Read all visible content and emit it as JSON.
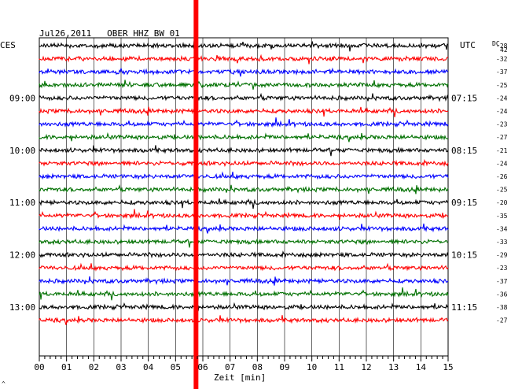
{
  "chart_data": {
    "type": "line",
    "title": "Jul26,2011   OBER HHZ BW 01",
    "left_timezone": "CES",
    "right_timezone": "UTC",
    "dc_label": "DC",
    "dc_superscript": "42",
    "xlabel": "Zeit [min]",
    "x_ticks": [
      "00",
      "01",
      "02",
      "03",
      "04",
      "05",
      "06",
      "07",
      "08",
      "09",
      "10",
      "11",
      "12",
      "13",
      "14",
      "15"
    ],
    "xlim": [
      0,
      15
    ],
    "grid": true,
    "trace_colors": [
      "#000000",
      "#ff0000",
      "#0000ff",
      "#007000"
    ],
    "left_hour_labels": [
      {
        "trace": 4,
        "label": "09:00"
      },
      {
        "trace": 8,
        "label": "10:00"
      },
      {
        "trace": 12,
        "label": "11:00"
      },
      {
        "trace": 16,
        "label": "12:00"
      },
      {
        "trace": 20,
        "label": "13:00"
      }
    ],
    "right_hour_labels": [
      {
        "trace": 4,
        "label": "07:15"
      },
      {
        "trace": 8,
        "label": "08:15"
      },
      {
        "trace": 12,
        "label": "09:15"
      },
      {
        "trace": 16,
        "label": "10:15"
      },
      {
        "trace": 20,
        "label": "11:15"
      }
    ],
    "dc_offsets": [
      "-28",
      "-32",
      "-37",
      "-25",
      "-24",
      "-24",
      "-23",
      "-27",
      "-21",
      "-24",
      "-26",
      "-25",
      "-20",
      "-35",
      "-34",
      "-33",
      "-29",
      "-23",
      "-37",
      "-36",
      "-38",
      "-27"
    ],
    "marker_minute": 5.75,
    "marker_color": "#ff0000",
    "corner_mark": "^"
  }
}
